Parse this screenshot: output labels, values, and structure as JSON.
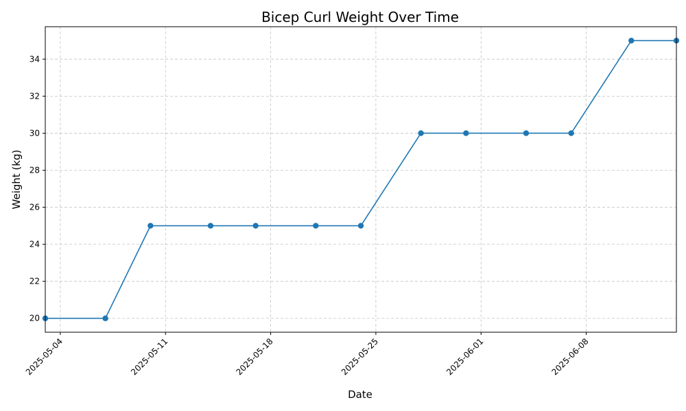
{
  "chart_data": {
    "type": "line",
    "title": "Bicep Curl Weight Over Time",
    "xlabel": "Date",
    "ylabel": "Weight (kg)",
    "x": [
      "2025-05-03",
      "2025-05-07",
      "2025-05-10",
      "2025-05-14",
      "2025-05-17",
      "2025-05-21",
      "2025-05-24",
      "2025-05-28",
      "2025-05-31",
      "2025-06-04",
      "2025-06-07",
      "2025-06-11",
      "2025-06-14"
    ],
    "series": [
      {
        "values": [
          20,
          20,
          25,
          25,
          25,
          25,
          25,
          30,
          30,
          30,
          30,
          35,
          35
        ],
        "color": "#1f77b4"
      }
    ],
    "xlim": [
      "2025-05-03",
      "2025-06-14"
    ],
    "ylim": [
      19.25,
      35.75
    ],
    "xticks": [
      "2025-05-04",
      "2025-05-11",
      "2025-05-18",
      "2025-05-25",
      "2025-06-01",
      "2025-06-08"
    ],
    "yticks": [
      20,
      22,
      24,
      26,
      28,
      30,
      32,
      34
    ],
    "grid": true,
    "marker": "circle"
  }
}
